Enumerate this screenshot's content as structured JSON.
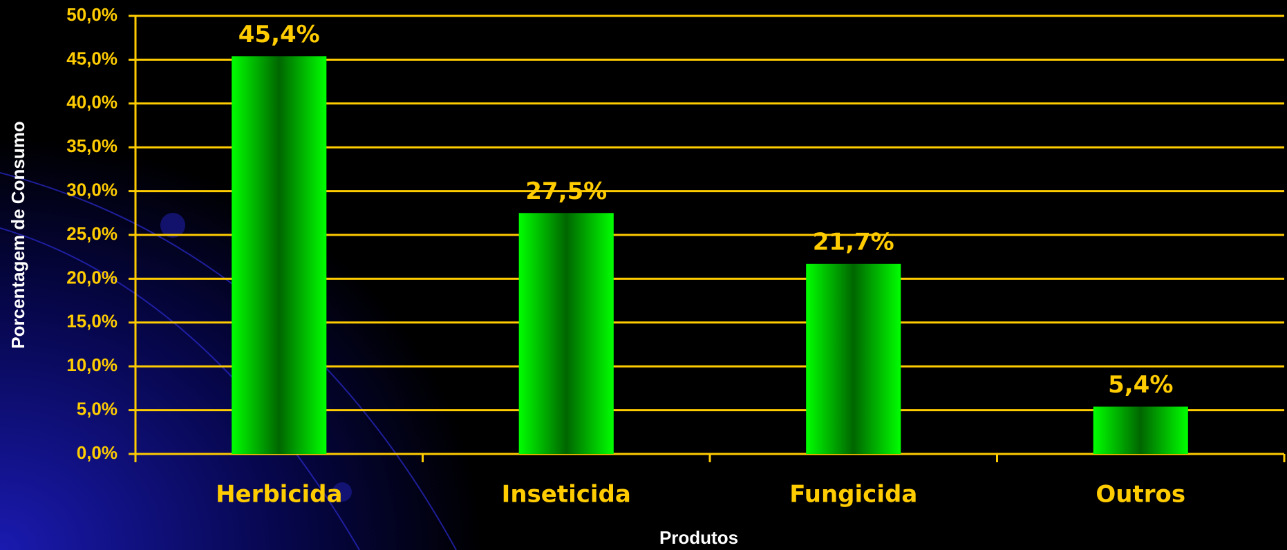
{
  "chart_data": {
    "type": "bar",
    "x_label": "Produtos",
    "y_label": "Porcentagem de Consumo",
    "categories": [
      "Herbicida",
      "Inseticida",
      "Fungicida",
      "Outros"
    ],
    "values": [
      45.4,
      27.5,
      21.7,
      5.4
    ],
    "value_labels": [
      "45,4%",
      "27,5%",
      "21,7%",
      "5,4%"
    ],
    "color": "#00ff00",
    "ylim": [
      0,
      50
    ],
    "yticks": [
      {
        "value": 0,
        "label": "0,0%"
      },
      {
        "value": 5,
        "label": "5,0%"
      },
      {
        "value": 10,
        "label": "10,0%"
      },
      {
        "value": 15,
        "label": "15,0%"
      },
      {
        "value": 20,
        "label": "20,0%"
      },
      {
        "value": 25,
        "label": "25,0%"
      },
      {
        "value": 30,
        "label": "30,0%"
      },
      {
        "value": 35,
        "label": "35,0%"
      },
      {
        "value": 40,
        "label": "40,0%"
      },
      {
        "value": 45,
        "label": "45,0%"
      },
      {
        "value": 50,
        "label": "50,0%"
      }
    ],
    "grid": true
  }
}
